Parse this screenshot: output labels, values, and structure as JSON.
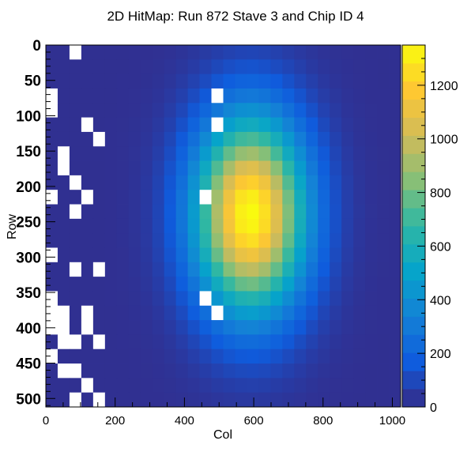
{
  "chart_data": {
    "type": "heatmap",
    "title": "2D HitMap: Run 872 Stave 3 and Chip ID 4",
    "xlabel": "Col",
    "ylabel": "Row",
    "xlim": [
      0,
      1024
    ],
    "ylim": [
      0,
      512
    ],
    "y_direction": "top-to-bottom",
    "x_ticks": [
      "0",
      "200",
      "400",
      "600",
      "800",
      "1000"
    ],
    "y_ticks": [
      "0",
      "50",
      "100",
      "150",
      "200",
      "250",
      "300",
      "350",
      "400",
      "450",
      "500"
    ],
    "colorbar": {
      "min": 0,
      "max": 1350,
      "ticks": [
        "0",
        "200",
        "400",
        "600",
        "800",
        "1000",
        "1200"
      ],
      "palette": [
        "#352a87",
        "#0f5cdd",
        "#1481d6",
        "#06a4ca",
        "#2eb7a4",
        "#87bf77",
        "#d1bb59",
        "#fec832",
        "#f9fb0e"
      ]
    },
    "grid": false,
    "bin_layout": {
      "n_cols": 30,
      "n_rows": 25,
      "col_width": 34.13,
      "row_height": 20.48
    },
    "distribution": {
      "shape": "2D Gaussian hot spot",
      "peak_col": 590,
      "peak_row": 240,
      "sigma_col": 110,
      "sigma_row": 95,
      "peak_value": 1350,
      "background_value": 20
    },
    "empty_bins": [
      [
        2,
        0
      ],
      [
        0,
        3
      ],
      [
        14,
        3
      ],
      [
        0,
        4
      ],
      [
        3,
        5
      ],
      [
        1,
        7
      ],
      [
        1,
        8
      ],
      [
        2,
        9
      ],
      [
        13,
        10
      ],
      [
        0,
        10
      ],
      [
        3,
        10
      ],
      [
        2,
        11
      ],
      [
        0,
        14
      ],
      [
        2,
        15
      ],
      [
        4,
        15
      ],
      [
        0,
        17
      ],
      [
        0,
        18
      ],
      [
        1,
        18
      ],
      [
        3,
        18
      ],
      [
        0,
        19
      ],
      [
        1,
        19
      ],
      [
        3,
        19
      ],
      [
        14,
        5
      ],
      [
        1,
        20
      ],
      [
        2,
        20
      ],
      [
        4,
        20
      ],
      [
        0,
        21
      ],
      [
        1,
        22
      ],
      [
        2,
        22
      ],
      [
        3,
        23
      ],
      [
        2,
        24
      ],
      [
        4,
        24
      ],
      [
        14,
        18
      ],
      [
        4,
        6
      ],
      [
        13,
        17
      ]
    ],
    "extra_empty_bins_note": ""
  }
}
